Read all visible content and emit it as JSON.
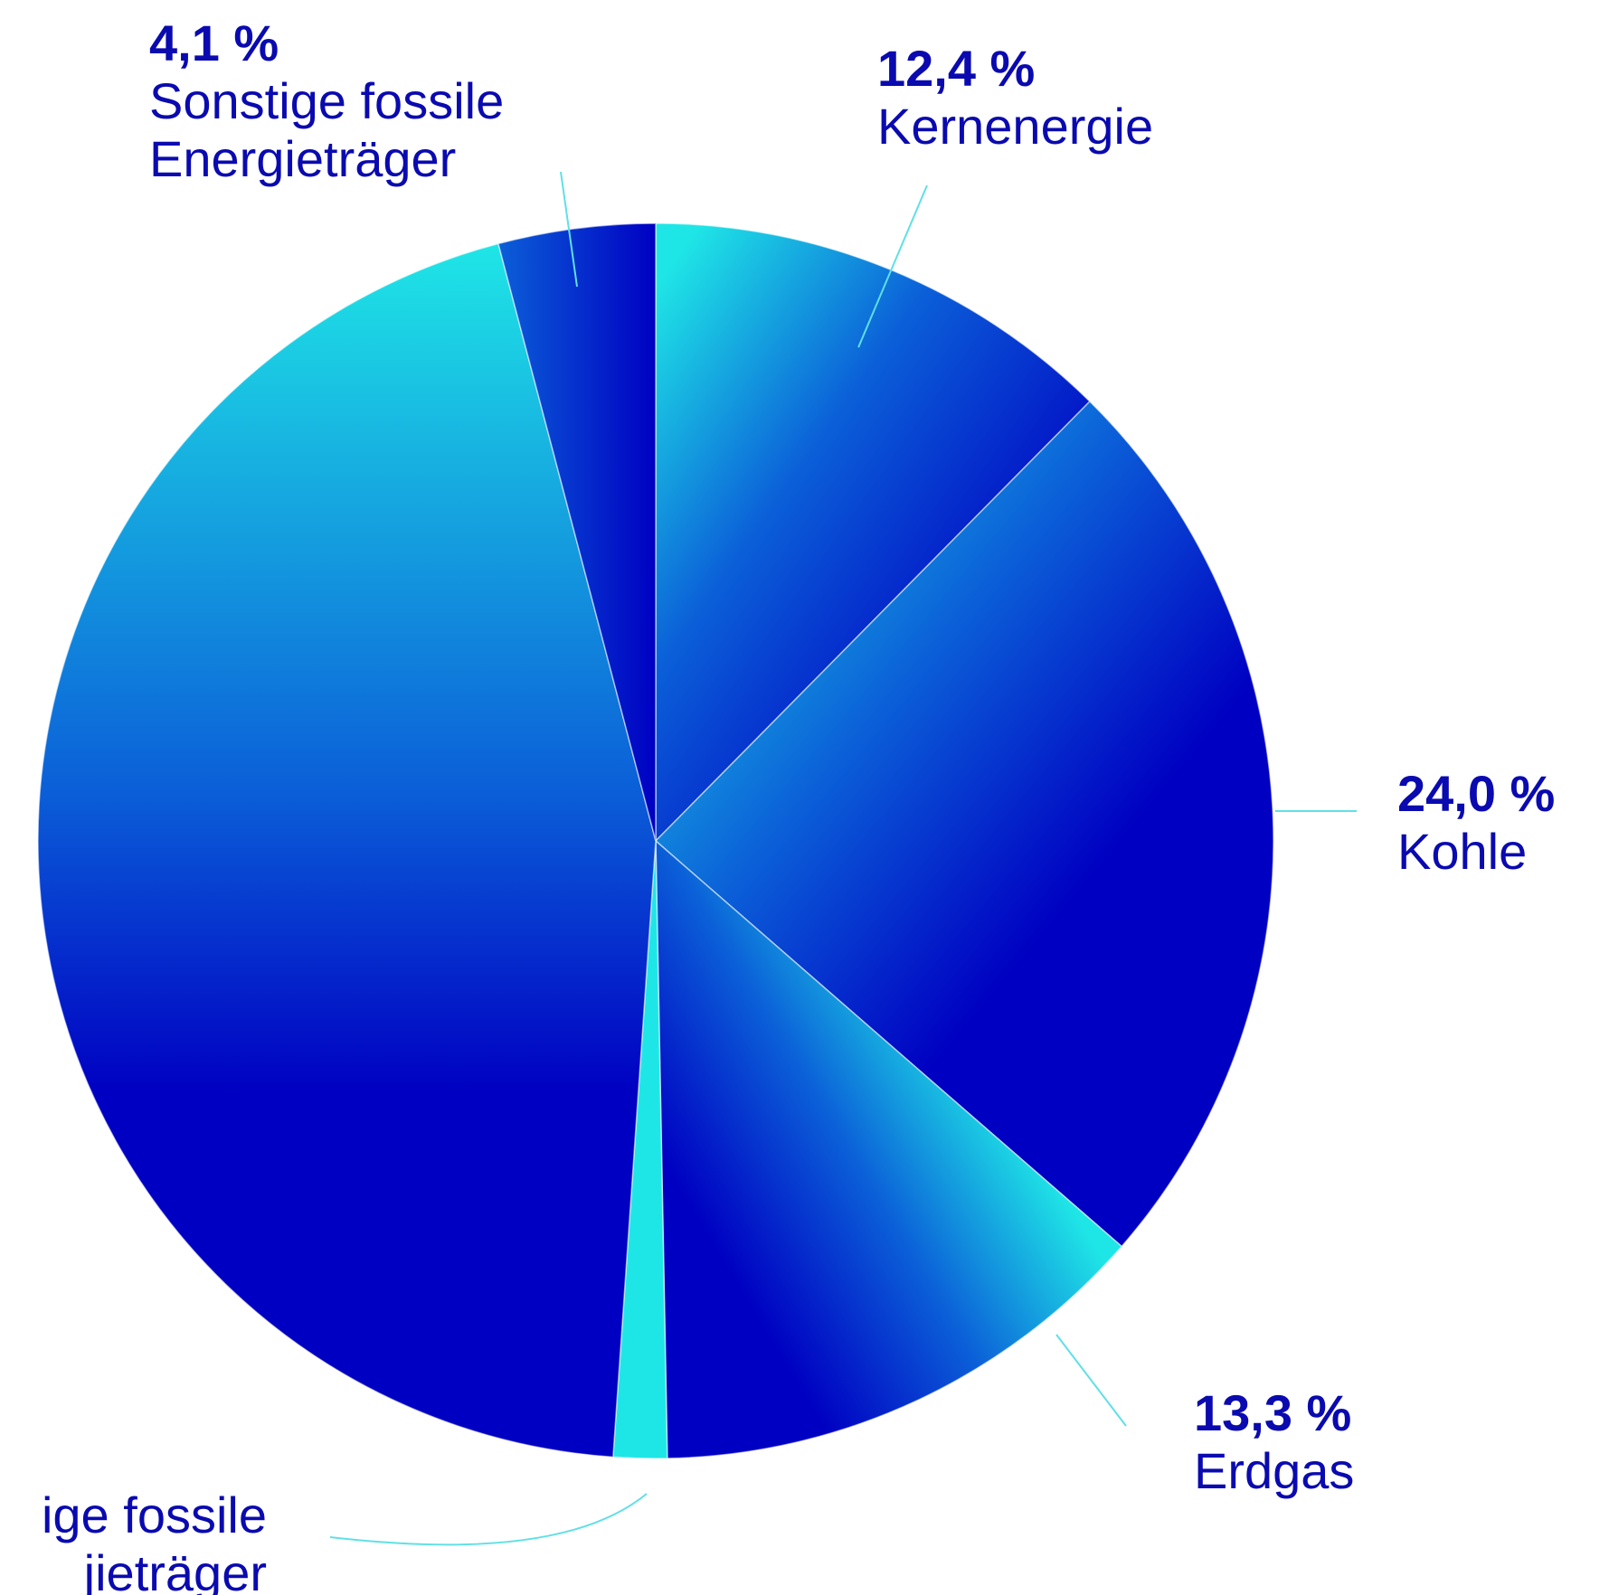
{
  "colors": {
    "dark": "#0000c2",
    "mid": "#0b5fd8",
    "light": "#1fe6e6",
    "label": "#0a0ab0",
    "leader": "#5fe0e6"
  },
  "chart_data": {
    "type": "pie",
    "title": "",
    "start": "12 o'clock",
    "direction": "clockwise",
    "slices": [
      {
        "label_lines": [
          "Kernenergie"
        ],
        "value": 12.4,
        "value_label": "12,4 %"
      },
      {
        "label_lines": [
          "Kohle"
        ],
        "value": 24.0,
        "value_label": "24,0 %"
      },
      {
        "label_lines": [
          "Erdgas"
        ],
        "value": 13.3,
        "value_label": "13,3 %"
      },
      {
        "label_lines": [
          "ige fossile",
          "jieträger"
        ],
        "value": 1.4,
        "value_label": ""
      },
      {
        "label_lines": [],
        "value": 44.8,
        "value_label": ""
      },
      {
        "label_lines": [
          "Sonstige fossile",
          "Energieträger"
        ],
        "value": 4.1,
        "value_label": "4,1 %"
      }
    ]
  }
}
